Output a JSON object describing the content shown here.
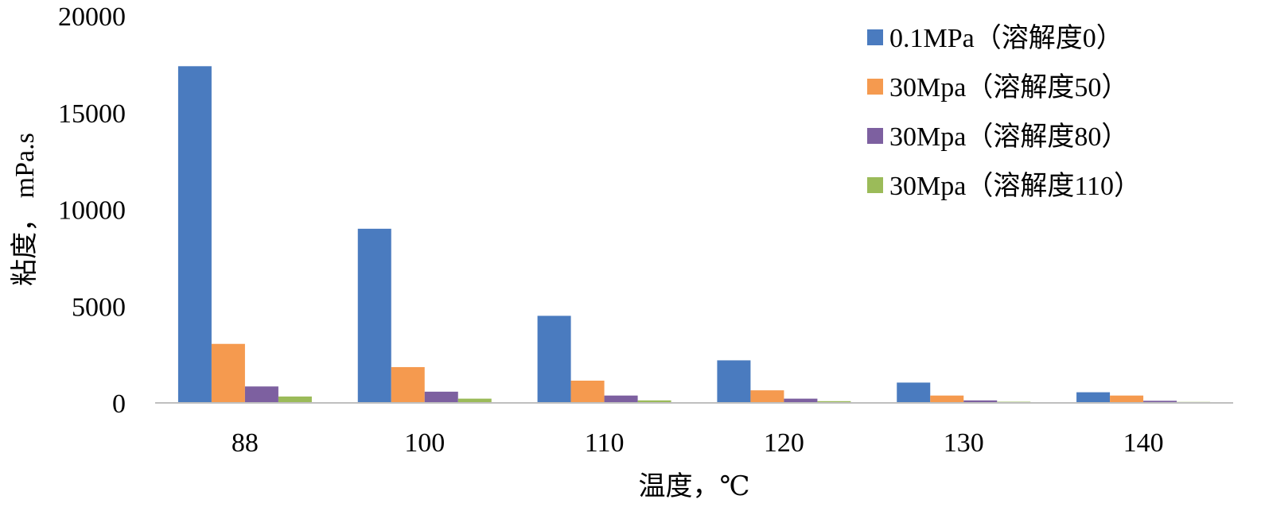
{
  "chart_data": {
    "type": "bar",
    "title": "",
    "xlabel": "温度，℃",
    "ylabel": "粘度， mPa.s",
    "categories": [
      "88",
      "100",
      "110",
      "120",
      "130",
      "140"
    ],
    "ylim": [
      0,
      20000
    ],
    "yticks": [
      "0",
      "5000",
      "10000",
      "15000",
      "20000"
    ],
    "ytick_values": [
      0,
      5000,
      10000,
      15000,
      20000
    ],
    "grid": false,
    "legend_position": "top-right",
    "series": [
      {
        "name": "0.1MPa（溶解度0）",
        "color": "#4a7bbf",
        "values": [
          17400,
          9000,
          4500,
          2200,
          1050,
          550
        ]
      },
      {
        "name": "30Mpa（溶解度50）",
        "color": "#f59a4f",
        "values": [
          3050,
          1850,
          1150,
          650,
          380,
          380
        ]
      },
      {
        "name": "30Mpa（溶解度80）",
        "color": "#7d60a0",
        "values": [
          850,
          580,
          380,
          220,
          130,
          110
        ]
      },
      {
        "name": "30Mpa（溶解度110）",
        "color": "#9bbb59",
        "values": [
          330,
          220,
          130,
          90,
          60,
          50
        ]
      }
    ]
  }
}
